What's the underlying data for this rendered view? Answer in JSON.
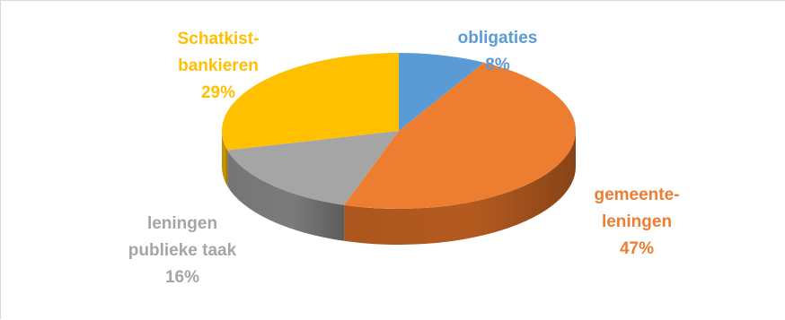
{
  "chart_data": {
    "type": "pie",
    "style": "3d",
    "title": "",
    "legend": "none",
    "slices": [
      {
        "name_lines": [
          "obligaties"
        ],
        "name": "obligaties",
        "value": 8,
        "value_label": "8%",
        "color": "#5b9bd5",
        "side_color": "#41719c"
      },
      {
        "name_lines": [
          "gemeente-",
          "leningen"
        ],
        "name": "gemeente-leningen",
        "value": 47,
        "value_label": "47%",
        "color": "#ed7d31",
        "side_color": "#b45a1f"
      },
      {
        "name_lines": [
          "leningen",
          "publieke taak"
        ],
        "name": "leningen publieke taak",
        "value": 16,
        "value_label": "16%",
        "color": "#a5a5a5",
        "side_color": "#7b7b7b"
      },
      {
        "name_lines": [
          "Schatkist-",
          "bankieren"
        ],
        "name": "Schatkist-bankieren",
        "value": 29,
        "value_label": "29%",
        "color": "#ffc000",
        "side_color": "#c99700"
      }
    ]
  }
}
